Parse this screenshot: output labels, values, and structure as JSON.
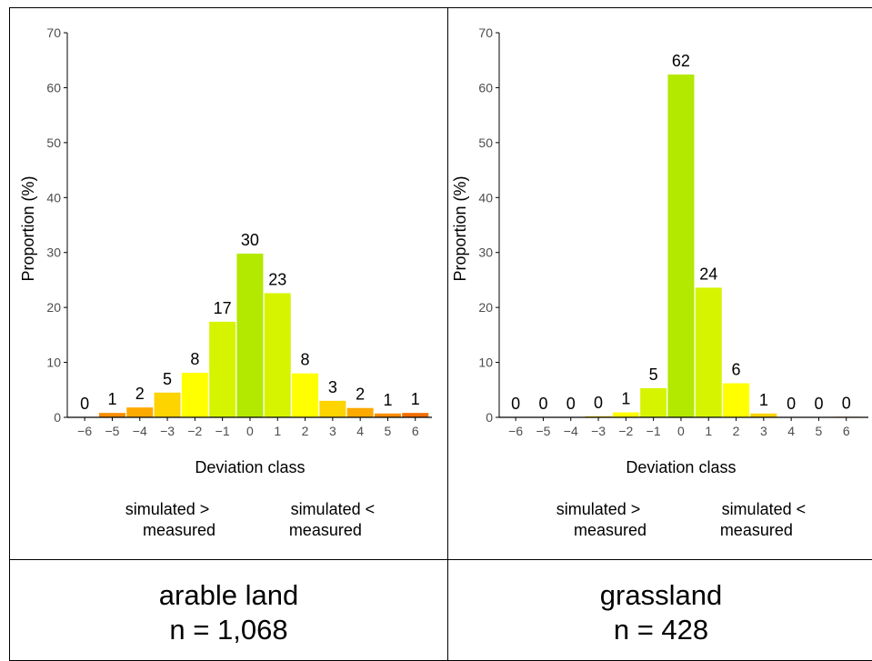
{
  "chart_data": [
    {
      "type": "bar",
      "panel": "arable land",
      "xlabel": "Deviation class",
      "ylabel": "Proportion (%)",
      "ylim": [
        0,
        70
      ],
      "yticks": [
        0,
        10,
        20,
        30,
        40,
        50,
        60,
        70
      ],
      "categories": [
        "-6",
        "-5",
        "-4",
        "-3",
        "-2",
        "-1",
        "0",
        "1",
        "2",
        "3",
        "4",
        "5",
        "6"
      ],
      "values": [
        0,
        0.8,
        1.8,
        4.5,
        8.1,
        17.4,
        29.8,
        22.6,
        8.0,
        3.0,
        1.7,
        0.7,
        0.8
      ],
      "data_labels": [
        "0",
        "1",
        "2",
        "5",
        "8",
        "17",
        "30",
        "23",
        "8",
        "3",
        "2",
        "1",
        "1"
      ],
      "colors": [
        "#fd7200",
        "#fb8d00",
        "#fdaa00",
        "#fdd300",
        "#ffff00",
        "#d6f400",
        "#b3e800",
        "#d6f400",
        "#ffff00",
        "#fdd300",
        "#fdaa00",
        "#fb8d00",
        "#f56e00"
      ],
      "annotation_left": [
        "simulated >",
        "measured"
      ],
      "annotation_right": [
        "simulated <",
        "measured"
      ],
      "footer_title": "arable land",
      "footer_n": "n = 1,068"
    },
    {
      "type": "bar",
      "panel": "grassland",
      "xlabel": "Deviation class",
      "ylabel": "Proportion (%)",
      "ylim": [
        0,
        70
      ],
      "yticks": [
        0,
        10,
        20,
        30,
        40,
        50,
        60,
        70
      ],
      "categories": [
        "-6",
        "-5",
        "-4",
        "-3",
        "-2",
        "-1",
        "0",
        "1",
        "2",
        "3",
        "4",
        "5",
        "6"
      ],
      "values": [
        0,
        0,
        0,
        0.2,
        0.9,
        5.3,
        62.4,
        23.6,
        6.2,
        0.7,
        0,
        0,
        0.1
      ],
      "data_labels": [
        "0",
        "0",
        "0",
        "0",
        "1",
        "5",
        "62",
        "24",
        "6",
        "1",
        "0",
        "0",
        "0"
      ],
      "colors": [
        "#fd7200",
        "#fb8d00",
        "#fdaa00",
        "#fdd300",
        "#ffff00",
        "#d6f400",
        "#b3e800",
        "#d6f400",
        "#ffff00",
        "#fdd300",
        "#fdaa00",
        "#fb8d00",
        "#f56e00"
      ],
      "annotation_left": [
        "simulated >",
        "measured"
      ],
      "annotation_right": [
        "simulated <",
        "measured"
      ],
      "footer_title": "grassland",
      "footer_n": "n = 428"
    }
  ]
}
